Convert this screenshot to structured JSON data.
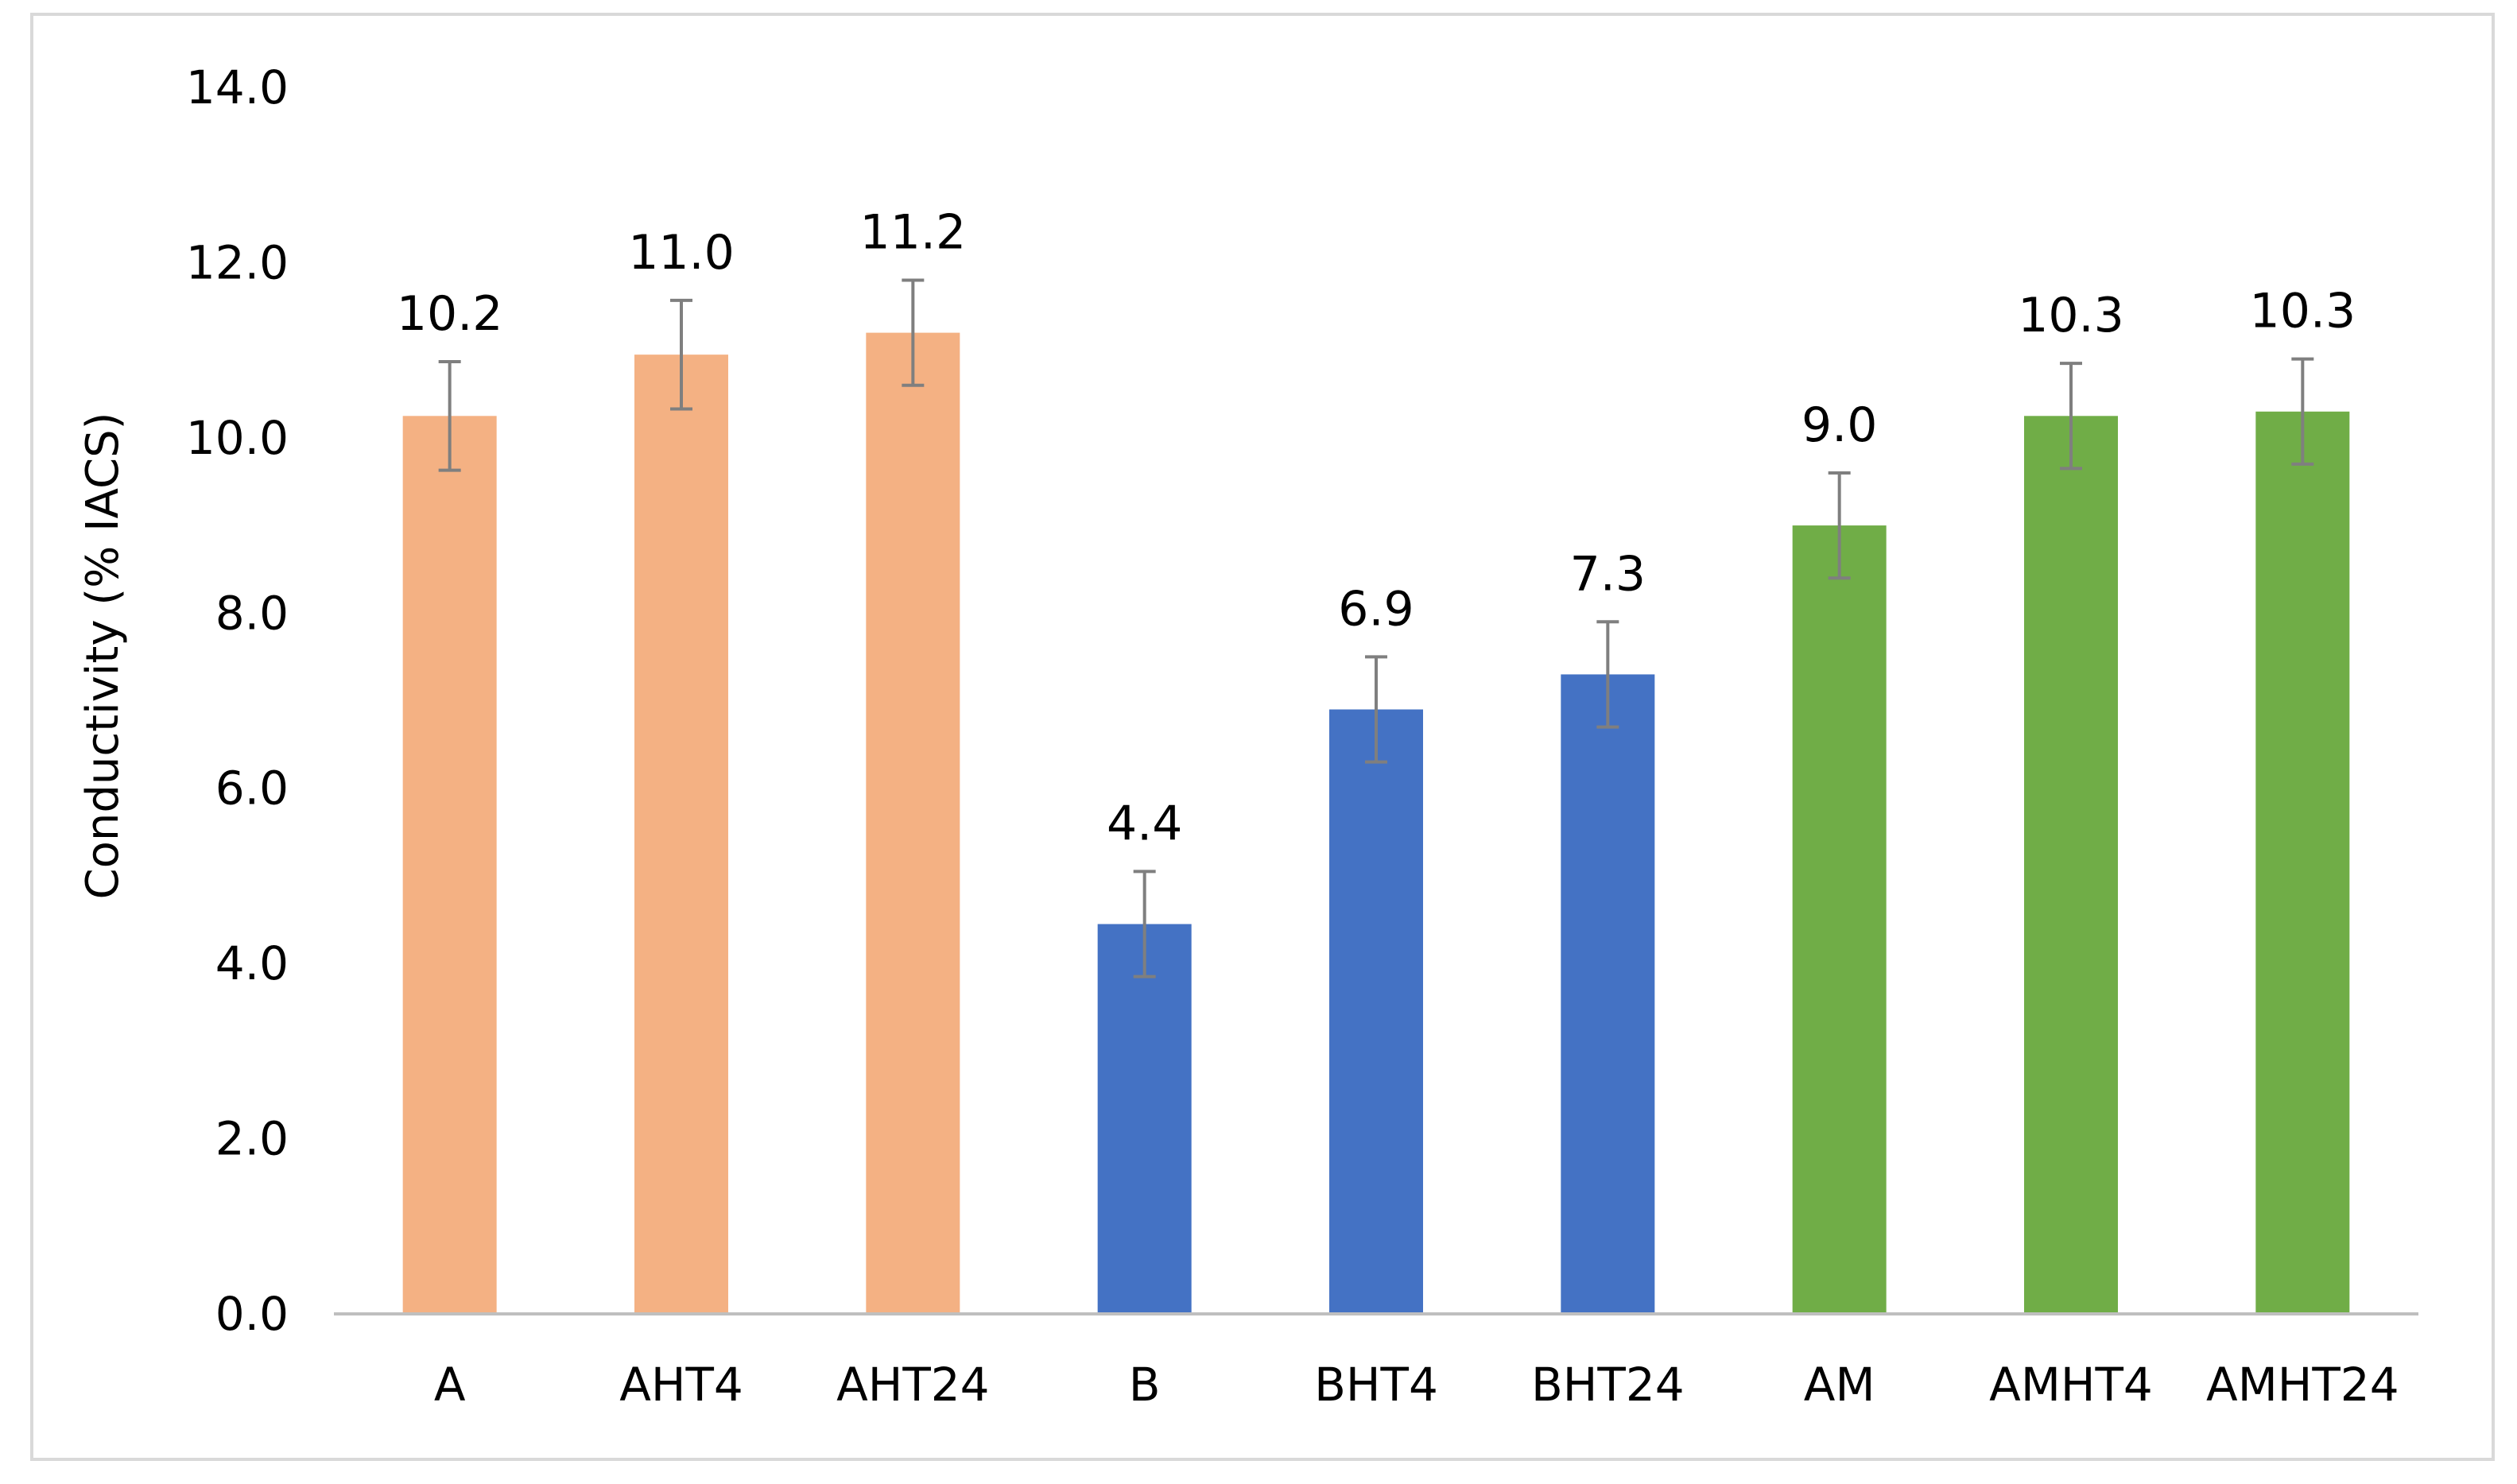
{
  "chart_data": {
    "type": "bar",
    "title": "",
    "xlabel": "",
    "ylabel": "Conductivity (% IACS)",
    "ylim": [
      0,
      14
    ],
    "yticks": [
      "0.0",
      "2.0",
      "4.0",
      "6.0",
      "8.0",
      "10.0",
      "12.0",
      "14.0"
    ],
    "ytick_values": [
      0,
      2,
      4,
      6,
      8,
      10,
      12,
      14
    ],
    "grid": false,
    "legend": "none",
    "categories": [
      "A",
      "AHT4",
      "AHT24",
      "B",
      "BHT4",
      "BHT24",
      "AM",
      "AMHT4",
      "AMHT24"
    ],
    "values": [
      10.25,
      10.95,
      11.2,
      4.45,
      6.9,
      7.3,
      9.0,
      10.25,
      10.3
    ],
    "data_labels": [
      "10.2",
      "11.0",
      "11.2",
      "4.4",
      "6.9",
      "7.3",
      "9.0",
      "10.3",
      "10.3"
    ],
    "error": [
      0.62,
      0.62,
      0.6,
      0.6,
      0.6,
      0.6,
      0.6,
      0.6,
      0.6
    ],
    "bar_colors": [
      "#f4b183",
      "#f4b183",
      "#f4b183",
      "#4472c4",
      "#4472c4",
      "#4472c4",
      "#70ad47",
      "#70ad47",
      "#70ad47"
    ],
    "error_bar_color": "#7f7f7f",
    "axis_color": "#bfbfbf"
  }
}
